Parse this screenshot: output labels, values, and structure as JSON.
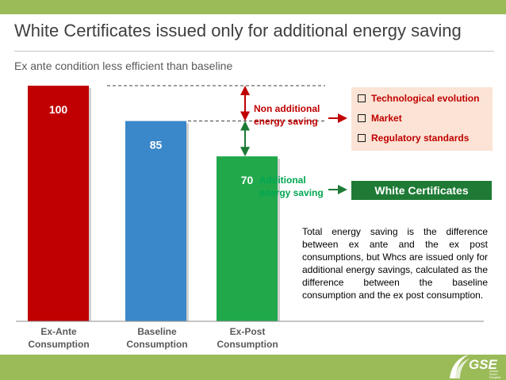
{
  "header": {
    "title": "White Certificates issued only for additional energy saving",
    "subtitle": "Ex ante condition less efficient than baseline"
  },
  "chart_data": {
    "type": "bar",
    "categories": [
      "Ex-Ante Consumption",
      "Baseline Consumption",
      "Ex-Post Consumption"
    ],
    "category_lines": [
      [
        "Ex-Ante",
        "Consumption"
      ],
      [
        "Baseline",
        "Consumption"
      ],
      [
        "Ex-Post",
        "Consumption"
      ]
    ],
    "values": [
      100,
      85,
      70
    ],
    "value_labels": [
      "100",
      "85",
      "70"
    ],
    "colors": [
      "#c00000",
      "#3a87c9",
      "#21a84b"
    ],
    "ylim": [
      0,
      100
    ],
    "grid": false,
    "title": "",
    "xlabel": "",
    "ylabel": ""
  },
  "annotations": {
    "non_additional": {
      "lines": [
        "Non additional",
        "energy saving"
      ],
      "color": "#c00000"
    },
    "additional": {
      "lines": [
        "Additional",
        "energy saving"
      ],
      "color": "#00a651"
    }
  },
  "factors": {
    "items": [
      "Technological evolution",
      "Market",
      "Regulatory standards"
    ]
  },
  "white_certificates_label": "White Certificates",
  "note": "Total energy saving is the difference between ex ante and the ex post consumptions, but Whcs are issued only for additional energy savings, calculated as the difference between the baseline consumption and the ex post consumption.",
  "logo": {
    "text": "GSE",
    "tagline": [
      "Gestore",
      "Servizi",
      "Energetici"
    ]
  },
  "colors": {
    "band": "#9bbb59",
    "accent_red": "#c00000",
    "accent_green": "#00a651",
    "wc_box": "#1e7a34"
  }
}
